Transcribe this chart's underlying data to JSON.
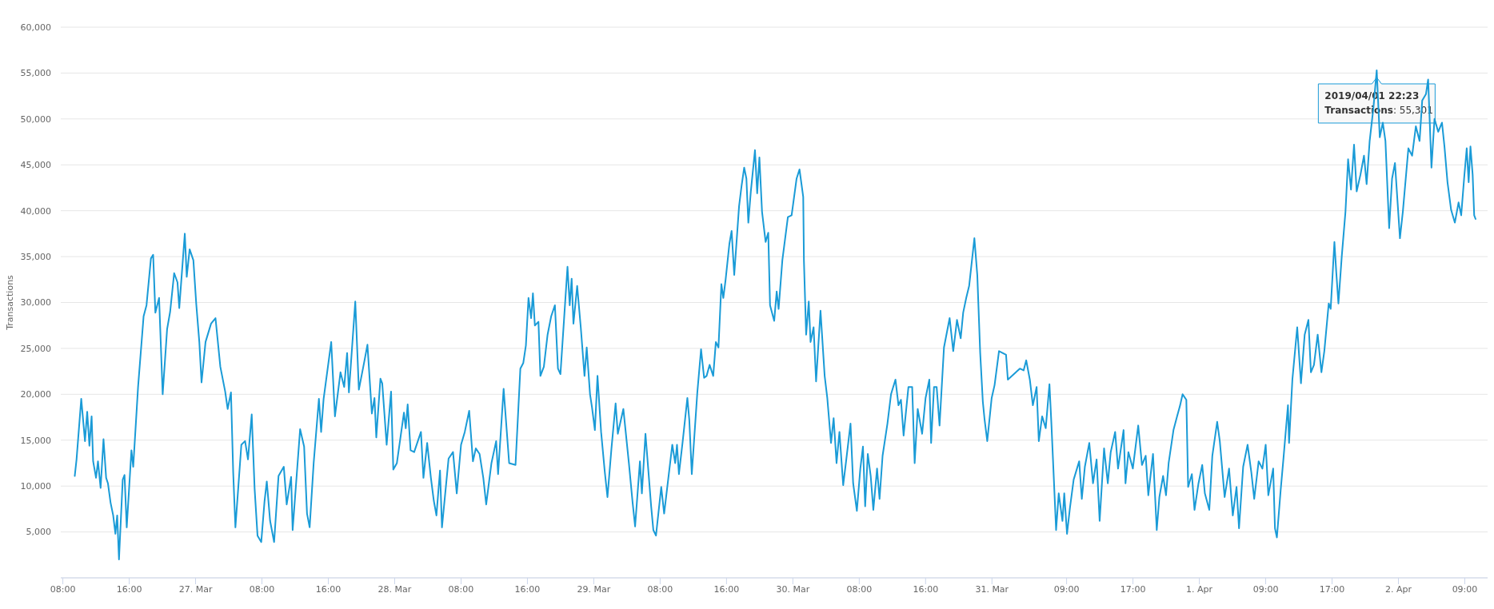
{
  "chart_data": {
    "type": "line",
    "ylabel": "Transactions",
    "grid": "y",
    "xlim": [
      "2019-03-26T07:45",
      "2019-04-02T11:45"
    ],
    "xticks": [
      {
        "value": "2019-03-26T08:00",
        "label": "08:00"
      },
      {
        "value": "2019-03-26T16:00",
        "label": "16:00"
      },
      {
        "value": "2019-03-27T00:00",
        "label": "27. Mar"
      },
      {
        "value": "2019-03-27T08:00",
        "label": "08:00"
      },
      {
        "value": "2019-03-27T16:00",
        "label": "16:00"
      },
      {
        "value": "2019-03-28T00:00",
        "label": "28. Mar"
      },
      {
        "value": "2019-03-28T08:00",
        "label": "08:00"
      },
      {
        "value": "2019-03-28T16:00",
        "label": "16:00"
      },
      {
        "value": "2019-03-29T00:00",
        "label": "29. Mar"
      },
      {
        "value": "2019-03-29T08:00",
        "label": "08:00"
      },
      {
        "value": "2019-03-29T16:00",
        "label": "16:00"
      },
      {
        "value": "2019-03-30T00:00",
        "label": "30. Mar"
      },
      {
        "value": "2019-03-30T08:00",
        "label": "08:00"
      },
      {
        "value": "2019-03-30T16:00",
        "label": "16:00"
      },
      {
        "value": "2019-03-31T00:00",
        "label": "31. Mar"
      },
      {
        "value": "2019-03-31T09:00",
        "label": "09:00"
      },
      {
        "value": "2019-03-31T17:00",
        "label": "17:00"
      },
      {
        "value": "2019-04-01T01:00",
        "label": "1. Apr"
      },
      {
        "value": "2019-04-01T09:00",
        "label": "09:00"
      },
      {
        "value": "2019-04-01T17:00",
        "label": "17:00"
      },
      {
        "value": "2019-04-02T01:00",
        "label": "2. Apr"
      },
      {
        "value": "2019-04-02T09:00",
        "label": "09:00"
      }
    ],
    "ylim": [
      0,
      60000
    ],
    "yticks": [
      {
        "value": 5000,
        "label": "5,000"
      },
      {
        "value": 10000,
        "label": "10,000"
      },
      {
        "value": 15000,
        "label": "15,000"
      },
      {
        "value": 20000,
        "label": "20,000"
      },
      {
        "value": 25000,
        "label": "25,000"
      },
      {
        "value": 30000,
        "label": "30,000"
      },
      {
        "value": 35000,
        "label": "35,000"
      },
      {
        "value": 40000,
        "label": "40,000"
      },
      {
        "value": 45000,
        "label": "45,000"
      },
      {
        "value": 50000,
        "label": "50,000"
      },
      {
        "value": 55000,
        "label": "55,000"
      },
      {
        "value": 60000,
        "label": "60,000"
      }
    ],
    "annotations": [
      {
        "text": "2019/04/01 22:23",
        "x": "2019-04-01T22:23",
        "y": 55301
      },
      "Transactions: 55,301"
    ],
    "x": [
      "2019-03-26T09:26",
      "2019-03-26T09:39",
      "2019-03-26T10:13",
      "2019-03-26T10:40",
      "2019-03-26T10:56",
      "2019-03-26T11:12",
      "2019-03-26T11:28",
      "2019-03-26T11:39",
      "2019-03-26T12:00",
      "2019-03-26T12:14",
      "2019-03-26T12:33",
      "2019-03-26T12:54",
      "2019-03-26T13:13",
      "2019-03-26T13:26",
      "2019-03-26T13:45",
      "2019-03-26T14:04",
      "2019-03-26T14:20",
      "2019-03-26T14:33",
      "2019-03-26T14:46",
      "2019-03-26T15:13",
      "2019-03-26T15:26",
      "2019-03-26T15:42",
      "2019-03-26T16:16",
      "2019-03-26T16:29",
      "2019-03-26T17:04",
      "2019-03-26T17:44",
      "2019-03-26T18:05",
      "2019-03-26T18:37",
      "2019-03-26T18:53",
      "2019-03-26T19:09",
      "2019-03-26T19:36",
      "2019-03-26T20:02",
      "2019-03-26T20:34",
      "2019-03-26T20:56",
      "2019-03-26T21:25",
      "2019-03-26T21:49",
      "2019-03-26T22:02",
      "2019-03-26T22:42",
      "2019-03-26T22:56",
      "2019-03-26T23:17",
      "2019-03-26T23:44",
      "2019-03-27T00:05",
      "2019-03-27T00:27",
      "2019-03-27T00:43",
      "2019-03-27T01:12",
      "2019-03-27T01:52",
      "2019-03-27T02:24",
      "2019-03-27T02:59",
      "2019-03-27T03:34",
      "2019-03-27T03:52",
      "2019-03-27T04:16",
      "2019-03-27T04:32",
      "2019-03-27T04:48",
      "2019-03-27T05:31",
      "2019-03-27T05:58",
      "2019-03-27T06:19",
      "2019-03-27T06:46",
      "2019-03-27T07:07",
      "2019-03-27T07:28",
      "2019-03-27T07:55",
      "2019-03-27T08:19",
      "2019-03-27T08:35",
      "2019-03-27T08:59",
      "2019-03-27T09:28",
      "2019-03-27T10:00",
      "2019-03-27T10:38",
      "2019-03-27T10:59",
      "2019-03-27T11:31",
      "2019-03-27T11:42",
      "2019-03-27T12:36",
      "2019-03-27T13:05",
      "2019-03-27T13:26",
      "2019-03-27T13:45",
      "2019-03-27T14:14",
      "2019-03-27T14:52",
      "2019-03-27T15:08",
      "2019-03-27T15:26",
      "2019-03-27T16:21",
      "2019-03-27T16:48",
      "2019-03-27T17:28",
      "2019-03-27T17:55",
      "2019-03-27T18:16",
      "2019-03-27T18:29",
      "2019-03-27T19:15",
      "2019-03-27T19:41",
      "2019-03-27T20:22",
      "2019-03-27T20:43",
      "2019-03-27T21:15",
      "2019-03-27T21:34",
      "2019-03-27T21:47",
      "2019-03-27T22:17",
      "2019-03-27T22:30",
      "2019-03-27T23:02",
      "2019-03-27T23:34",
      "2019-03-27T23:50",
      "2019-03-28T00:16",
      "2019-03-28T01:07",
      "2019-03-28T01:20",
      "2019-03-28T01:34",
      "2019-03-28T01:55",
      "2019-03-28T02:21",
      "2019-03-28T03:10",
      "2019-03-28T03:28",
      "2019-03-28T03:55",
      "2019-03-28T04:22",
      "2019-03-28T04:43",
      "2019-03-28T05:02",
      "2019-03-28T05:28",
      "2019-03-28T05:42",
      "2019-03-28T06:30",
      "2019-03-28T07:02",
      "2019-03-28T07:29",
      "2019-03-28T08:00",
      "2019-03-28T08:27",
      "2019-03-28T08:59",
      "2019-03-28T09:26",
      "2019-03-28T09:47",
      "2019-03-28T10:14",
      "2019-03-28T10:41",
      "2019-03-28T11:02",
      "2019-03-28T11:40",
      "2019-03-28T12:14",
      "2019-03-28T12:28",
      "2019-03-28T13:08",
      "2019-03-28T13:48",
      "2019-03-28T14:34",
      "2019-03-28T15:09",
      "2019-03-28T15:30",
      "2019-03-28T15:49",
      "2019-03-28T16:08",
      "2019-03-28T16:27",
      "2019-03-28T16:40",
      "2019-03-28T16:54",
      "2019-03-28T17:20",
      "2019-03-28T17:34",
      "2019-03-28T17:59",
      "2019-03-28T18:26",
      "2019-03-28T18:52",
      "2019-03-28T19:19",
      "2019-03-28T19:41",
      "2019-03-28T19:59",
      "2019-03-28T20:50",
      "2019-03-28T21:06",
      "2019-03-28T21:20",
      "2019-03-28T21:33",
      "2019-03-28T22:00",
      "2019-03-28T22:26",
      "2019-03-28T22:53",
      "2019-03-28T23:09",
      "2019-03-28T23:33",
      "2019-03-28T23:47",
      "2019-03-29T00:08",
      "2019-03-29T00:27",
      "2019-03-29T00:53",
      "2019-03-29T01:20",
      "2019-03-29T01:39",
      "2019-03-29T02:08",
      "2019-03-29T02:38",
      "2019-03-29T02:54",
      "2019-03-29T03:34",
      "2019-03-29T04:14",
      "2019-03-29T04:41",
      "2019-03-29T04:59",
      "2019-03-29T05:34",
      "2019-03-29T05:48",
      "2019-03-29T06:14",
      "2019-03-29T06:55",
      "2019-03-29T07:11",
      "2019-03-29T07:30",
      "2019-03-29T08:08",
      "2019-03-29T08:29",
      "2019-03-29T09:28",
      "2019-03-29T09:49",
      "2019-03-29T10:02",
      "2019-03-29T10:16",
      "2019-03-29T10:42",
      "2019-03-29T11:17",
      "2019-03-29T11:31",
      "2019-03-29T11:49",
      "2019-03-29T12:29",
      "2019-03-29T12:56",
      "2019-03-29T13:18",
      "2019-03-29T13:36",
      "2019-03-29T13:58",
      "2019-03-29T14:24",
      "2019-03-29T14:43",
      "2019-03-29T15:02",
      "2019-03-29T15:23",
      "2019-03-29T15:37",
      "2019-03-29T15:53",
      "2019-03-29T16:21",
      "2019-03-29T16:37",
      "2019-03-29T16:56",
      "2019-03-29T17:31",
      "2019-03-29T17:49",
      "2019-03-29T18:08",
      "2019-03-29T18:24",
      "2019-03-29T18:38",
      "2019-03-29T18:56",
      "2019-03-29T19:26",
      "2019-03-29T19:42",
      "2019-03-29T19:58",
      "2019-03-29T20:17",
      "2019-03-29T20:43",
      "2019-03-29T21:02",
      "2019-03-29T21:15",
      "2019-03-29T21:45",
      "2019-03-29T22:03",
      "2019-03-29T22:17",
      "2019-03-29T22:44",
      "2019-03-29T23:24",
      "2019-03-29T23:51",
      "2019-03-30T00:27",
      "2019-03-30T00:48",
      "2019-03-30T01:15",
      "2019-03-30T01:20",
      "2019-03-30T01:36",
      "2019-03-30T01:55",
      "2019-03-30T02:08",
      "2019-03-30T02:30",
      "2019-03-30T02:48",
      "2019-03-30T03:20",
      "2019-03-30T03:50",
      "2019-03-30T04:09",
      "2019-03-30T04:36",
      "2019-03-30T04:55",
      "2019-03-30T05:16",
      "2019-03-30T05:37",
      "2019-03-30T06:04",
      "2019-03-30T06:25",
      "2019-03-30T06:57",
      "2019-03-30T07:16",
      "2019-03-30T07:43",
      "2019-03-30T08:08",
      "2019-03-30T08:27",
      "2019-03-30T08:43",
      "2019-03-30T09:02",
      "2019-03-30T09:23",
      "2019-03-30T09:42",
      "2019-03-30T10:09",
      "2019-03-30T10:27",
      "2019-03-30T10:49",
      "2019-03-30T11:24",
      "2019-03-30T11:50",
      "2019-03-30T12:22",
      "2019-03-30T12:44",
      "2019-03-30T13:02",
      "2019-03-30T13:21",
      "2019-03-30T13:56",
      "2019-03-30T14:23",
      "2019-03-30T14:41",
      "2019-03-30T15:03",
      "2019-03-30T15:35",
      "2019-03-30T16:00",
      "2019-03-30T16:27",
      "2019-03-30T16:40",
      "2019-03-30T17:01",
      "2019-03-30T17:20",
      "2019-03-30T17:41",
      "2019-03-30T18:13",
      "2019-03-30T18:54",
      "2019-03-30T19:20",
      "2019-03-30T19:47",
      "2019-03-30T20:14",
      "2019-03-30T20:32",
      "2019-03-30T20:54",
      "2019-03-30T21:15",
      "2019-03-30T21:53",
      "2019-03-30T22:14",
      "2019-03-30T22:35",
      "2019-03-30T22:54",
      "2019-03-30T23:07",
      "2019-03-30T23:26",
      "2019-03-30T23:58",
      "2019-03-31T00:19",
      "2019-03-31T00:51",
      "2019-03-31T01:42",
      "2019-03-31T01:55",
      "2019-03-31T03:22",
      "2019-03-31T03:49",
      "2019-03-31T04:08",
      "2019-03-31T04:34",
      "2019-03-31T04:56",
      "2019-03-31T05:23",
      "2019-03-31T05:39",
      "2019-03-31T06:03",
      "2019-03-31T06:29",
      "2019-03-31T06:56",
      "2019-03-31T07:10",
      "2019-03-31T07:44",
      "2019-03-31T08:03",
      "2019-03-31T08:30",
      "2019-03-31T08:43",
      "2019-03-31T09:03",
      "2019-03-31T09:24",
      "2019-03-31T09:51",
      "2019-03-31T10:31",
      "2019-03-31T10:50",
      "2019-03-31T11:12",
      "2019-03-31T11:44",
      "2019-03-31T12:11",
      "2019-03-31T12:37",
      "2019-03-31T12:59",
      "2019-03-31T13:31",
      "2019-03-31T13:58",
      "2019-03-31T14:19",
      "2019-03-31T14:51",
      "2019-03-31T15:12",
      "2019-03-31T15:52",
      "2019-03-31T16:06",
      "2019-03-31T16:27",
      "2019-03-31T16:59",
      "2019-03-31T17:38",
      "2019-03-31T18:05",
      "2019-03-31T18:32",
      "2019-03-31T18:51",
      "2019-03-31T19:25",
      "2019-03-31T19:52",
      "2019-03-31T20:11",
      "2019-03-31T20:38",
      "2019-03-31T20:59",
      "2019-03-31T21:18",
      "2019-03-31T21:53",
      "2019-03-31T22:19",
      "2019-03-31T22:41",
      "2019-03-31T22:59",
      "2019-03-31T23:26",
      "2019-03-31T23:39",
      "2019-04-01T00:06",
      "2019-04-01T00:25",
      "2019-04-01T00:54",
      "2019-04-01T01:21",
      "2019-04-01T01:40",
      "2019-04-01T02:12",
      "2019-04-01T02:34",
      "2019-04-01T03:09",
      "2019-04-01T03:28",
      "2019-04-01T04:03",
      "2019-04-01T04:35",
      "2019-04-01T05:02",
      "2019-04-01T05:29",
      "2019-04-01T05:47",
      "2019-04-01T06:17",
      "2019-04-01T06:49",
      "2019-04-01T07:16",
      "2019-04-01T07:37",
      "2019-04-01T08:09",
      "2019-04-01T08:36",
      "2019-04-01T09:00",
      "2019-04-01T09:19",
      "2019-04-01T09:54",
      "2019-04-01T10:07",
      "2019-04-01T10:21",
      "2019-04-01T10:48",
      "2019-04-01T11:09",
      "2019-04-01T11:41",
      "2019-04-01T11:49",
      "2019-04-01T12:13",
      "2019-04-01T12:48",
      "2019-04-01T13:15",
      "2019-04-01T13:42",
      "2019-04-01T14:09",
      "2019-04-01T14:27",
      "2019-04-01T14:49",
      "2019-04-01T15:16",
      "2019-04-01T15:43",
      "2019-04-01T16:04",
      "2019-04-01T16:36",
      "2019-04-01T16:50",
      "2019-04-01T17:17",
      "2019-04-01T17:30",
      "2019-04-01T17:46",
      "2019-04-01T18:10",
      "2019-04-01T18:37",
      "2019-04-01T18:56",
      "2019-04-01T19:17",
      "2019-04-01T19:39",
      "2019-04-01T19:58",
      "2019-04-01T20:25",
      "2019-04-01T20:51",
      "2019-04-01T21:10",
      "2019-04-01T21:32",
      "2019-04-01T21:59",
      "2019-04-01T22:23",
      "2019-04-01T22:45",
      "2019-04-01T23:07",
      "2019-04-01T23:26",
      "2019-04-01T23:53",
      "2019-04-02T00:14",
      "2019-04-02T00:35",
      "2019-04-02T00:54",
      "2019-04-02T01:11",
      "2019-04-02T01:32",
      "2019-04-02T02:12",
      "2019-04-02T02:39",
      "2019-04-02T03:06",
      "2019-04-02T03:33",
      "2019-04-02T03:52",
      "2019-04-02T04:19",
      "2019-04-02T04:35",
      "2019-04-02T04:59",
      "2019-04-02T05:21",
      "2019-04-02T05:48",
      "2019-04-02T06:15",
      "2019-04-02T06:33",
      "2019-04-02T06:55",
      "2019-04-02T07:21",
      "2019-04-02T07:48",
      "2019-04-02T08:15",
      "2019-04-02T08:34",
      "2019-04-02T08:55",
      "2019-04-02T09:14",
      "2019-04-02T09:28",
      "2019-04-02T09:41",
      "2019-04-02T09:57",
      "2019-04-02T10:08",
      "2019-04-02T10:18"
    ],
    "series": [
      {
        "color": "#1a9bd7",
        "values": [
          11100,
          12900,
          19500,
          14900,
          18100,
          14400,
          17600,
          12700,
          10900,
          12700,
          9800,
          15100,
          10900,
          10300,
          8200,
          6800,
          4800,
          6800,
          2000,
          10700,
          11200,
          5500,
          13900,
          12100,
          20800,
          28500,
          29700,
          34800,
          35200,
          28900,
          30500,
          20000,
          27100,
          29000,
          33200,
          32200,
          29400,
          37500,
          32800,
          35800,
          34600,
          29800,
          25700,
          21300,
          25700,
          27700,
          28300,
          23000,
          20300,
          18400,
          20200,
          11500,
          5500,
          14500,
          14900,
          12900,
          17800,
          9700,
          4600,
          3900,
          8400,
          10500,
          6200,
          3900,
          11100,
          12100,
          8000,
          11000,
          5200,
          16200,
          14300,
          7000,
          5500,
          12500,
          19500,
          15900,
          19500,
          25700,
          17600,
          22400,
          20800,
          24500,
          20200,
          30100,
          20500,
          23700,
          25400,
          17900,
          19600,
          15300,
          21700,
          21200,
          14500,
          20300,
          11800,
          12500,
          18000,
          16300,
          18900,
          13900,
          13700,
          15900,
          10900,
          14700,
          10900,
          8400,
          6800,
          11700,
          5500,
          13000,
          13700,
          9200,
          14500,
          15900,
          18200,
          12700,
          14100,
          13500,
          10900,
          8000,
          12500,
          14900,
          11300,
          20600,
          12500,
          12300,
          22800,
          23400,
          25300,
          30500,
          28300,
          31000,
          27500,
          27900,
          22000,
          23000,
          26500,
          28500,
          29700,
          22800,
          22200,
          33900,
          29700,
          32600,
          27700,
          31800,
          27300,
          22000,
          25100,
          20000,
          18600,
          16100,
          22000,
          15900,
          11500,
          8800,
          14100,
          19000,
          15700,
          18400,
          12500,
          8200,
          5600,
          12700,
          9200,
          15700,
          7800,
          5200,
          4600,
          9900,
          7000,
          14500,
          12500,
          14500,
          11300,
          14700,
          19600,
          17200,
          11300,
          20200,
          24900,
          21800,
          22000,
          23200,
          22000,
          25700,
          25100,
          32000,
          30500,
          32400,
          36400,
          37800,
          33000,
          40500,
          42700,
          44700,
          43500,
          38700,
          42100,
          46600,
          41900,
          45800,
          39900,
          36600,
          37600,
          29700,
          28000,
          31200,
          29300,
          34600,
          39300,
          39500,
          43500,
          44500,
          41500,
          34600,
          26500,
          30100,
          25700,
          27300,
          21400,
          29100,
          22000,
          19600,
          14700,
          17400,
          12500,
          15900,
          10100,
          12700,
          16800,
          10300,
          7300,
          11900,
          14300,
          7800,
          13500,
          11100,
          7400,
          11900,
          8600,
          13300,
          16800,
          20000,
          21600,
          18800,
          19400,
          15500,
          20800,
          20800,
          12500,
          18400,
          15700,
          19600,
          21600,
          14700,
          20800,
          20800,
          16600,
          25100,
          28300,
          24700,
          28100,
          26100,
          28900,
          30500,
          31800,
          37000,
          33000,
          24500,
          19200,
          17200,
          14900,
          19600,
          21000,
          24700,
          24300,
          21600,
          22800,
          22600,
          23700,
          21600,
          18800,
          20800,
          14900,
          17600,
          16300,
          21100,
          16800,
          5200,
          9200,
          6200,
          9200,
          4800,
          7600,
          10700,
          12700,
          8600,
          12100,
          14700,
          10300,
          12900,
          6200,
          14100,
          10300,
          13700,
          15900,
          11900,
          16100,
          10300,
          13700,
          11900,
          16600,
          12300,
          13300,
          9000,
          13500,
          5200,
          8800,
          11100,
          9000,
          12500,
          16100,
          17600,
          18800,
          20000,
          19400,
          9900,
          11300,
          7400,
          10300,
          12300,
          9200,
          7400,
          13300,
          17000,
          14900,
          8800,
          11900,
          6800,
          9900,
          5400,
          12100,
          14500,
          11500,
          8600,
          12700,
          11900,
          14500,
          9000,
          11900,
          5400,
          4400,
          9500,
          13100,
          18800,
          14700,
          21600,
          27300,
          21200,
          26500,
          28100,
          22400,
          23200,
          26500,
          22400,
          24700,
          29900,
          29300,
          36600,
          33400,
          29900,
          35000,
          39900,
          45600,
          42300,
          47200,
          42100,
          43900,
          46000,
          42900,
          47600,
          51200,
          55301,
          48000,
          49600,
          47600,
          38100,
          43500,
          45200,
          40900,
          37000,
          39900,
          46800,
          46000,
          49200,
          47600,
          52000,
          52700,
          54300,
          44700,
          50000,
          48600,
          49600,
          47000,
          43100,
          40100,
          38700,
          40900,
          39500,
          43500,
          46800,
          43100,
          47000,
          43900,
          39500,
          39100
        ]
      }
    ]
  }
}
